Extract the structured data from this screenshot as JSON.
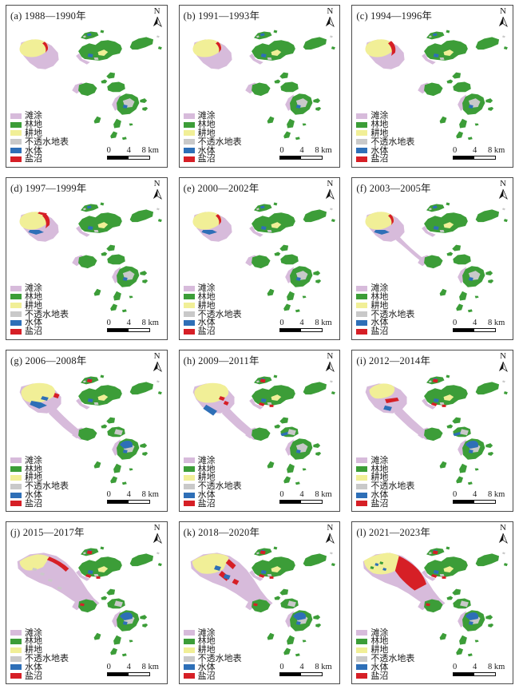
{
  "figure": {
    "north_label": "N",
    "scalebar": {
      "labels": [
        "0",
        "4",
        "8 km"
      ]
    },
    "legend": {
      "items": [
        {
          "label": "滩涂",
          "color": "#d7bbdb"
        },
        {
          "label": "林地",
          "color": "#3c9d38"
        },
        {
          "label": "耕地",
          "color": "#f1ef97"
        },
        {
          "label": "不透水地表",
          "color": "#c9c9c9"
        },
        {
          "label": "水体",
          "color": "#2e6fb7"
        },
        {
          "label": "盐沼",
          "color": "#d61f26"
        }
      ]
    },
    "panels": [
      {
        "id": "a",
        "title": "(a) 1988—1990年"
      },
      {
        "id": "b",
        "title": "(b) 1991—1993年"
      },
      {
        "id": "c",
        "title": "(c) 1994—1996年"
      },
      {
        "id": "d",
        "title": "(d) 1997—1999年"
      },
      {
        "id": "e",
        "title": "(e) 2000—2002年"
      },
      {
        "id": "f",
        "title": "(f) 2003—2005年"
      },
      {
        "id": "g",
        "title": "(g) 2006—2008年"
      },
      {
        "id": "h",
        "title": "(h) 2009—2011年"
      },
      {
        "id": "i",
        "title": "(i) 2012—2014年"
      },
      {
        "id": "j",
        "title": "(j) 2015—2017年"
      },
      {
        "id": "k",
        "title": "(k) 2018—2020年"
      },
      {
        "id": "l",
        "title": "(l) 2021—2023年"
      }
    ],
    "class_colors": {
      "tidal_flat": "#d7bbdb",
      "forest": "#3c9d38",
      "cropland": "#f1ef97",
      "impervious": "#c9c9c9",
      "water": "#2e6fb7",
      "salt_marsh": "#d61f26"
    }
  }
}
